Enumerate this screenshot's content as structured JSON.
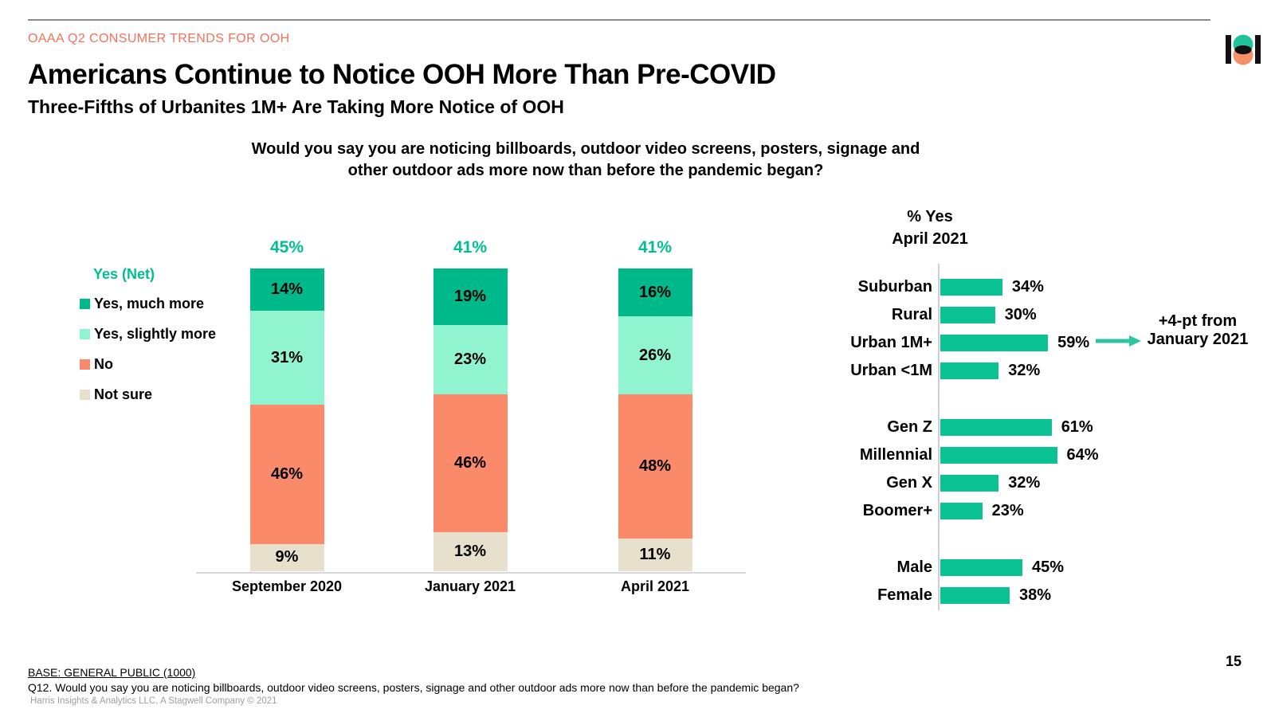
{
  "kicker": "OAAA Q2 CONSUMER TRENDS FOR OOH",
  "title": "Americans Continue to Notice OOH More Than Pre-COVID",
  "subtitle": "Three-Fifths of Urbanites 1M+ Are Taking More Notice of OOH",
  "question_line1": "Would you say you are noticing billboards, outdoor video screens, posters, signage and",
  "question_line2": "other outdoor ads more now than before the pandemic began?",
  "colors": {
    "accent_teal": "#00bd92",
    "kicker_salmon": "#f0725a",
    "logo_teal": "#1fc39a",
    "logo_orange": "#f59067",
    "rule_gray": "#8a8a8a"
  },
  "logo_icon": "harris-poll-logo",
  "chart_data": [
    {
      "type": "bar",
      "subtype": "stacked-vertical",
      "legend_title": "Yes (Net)",
      "value_suffix": "%",
      "categories": [
        "September 2020",
        "January 2021",
        "April 2021"
      ],
      "series": [
        {
          "name": "Yes, much more",
          "color": "#00b98b",
          "values": [
            14,
            19,
            16
          ]
        },
        {
          "name": "Yes, slightly more",
          "color": "#90f4d0",
          "values": [
            31,
            23,
            26
          ]
        },
        {
          "name": "No",
          "color": "#fa8a6a",
          "values": [
            46,
            46,
            48
          ]
        },
        {
          "name": "Not sure",
          "color": "#e6e0cd",
          "values": [
            9,
            13,
            11
          ]
        }
      ],
      "net_yes_labels": [
        "45%",
        "41%",
        "41%"
      ],
      "ylim": [
        0,
        100
      ],
      "grid": false
    },
    {
      "type": "bar",
      "subtype": "horizontal",
      "title_line1": "% Yes",
      "title_line2": "April 2021",
      "bar_color": "#0bc295",
      "value_suffix": "%",
      "xlim": [
        0,
        100
      ],
      "groups": [
        {
          "rows": [
            {
              "label": "Suburban",
              "value": 34
            },
            {
              "label": "Rural",
              "value": 30
            },
            {
              "label": "Urban 1M+",
              "value": 59
            },
            {
              "label": "Urban <1M",
              "value": 32
            }
          ]
        },
        {
          "rows": [
            {
              "label": "Gen Z",
              "value": 61
            },
            {
              "label": "Millennial",
              "value": 64
            },
            {
              "label": "Gen X",
              "value": 32
            },
            {
              "label": "Boomer+",
              "value": 23
            }
          ]
        },
        {
          "rows": [
            {
              "label": "Male",
              "value": 45
            },
            {
              "label": "Female",
              "value": 38
            }
          ]
        }
      ],
      "annotation": {
        "line1": "+4-pt from",
        "line2": "January 2021",
        "target": "Urban 1M+",
        "arrow_color": "#2cc5a1"
      }
    }
  ],
  "footer": {
    "base": "BASE: GENERAL PUBLIC (1000)",
    "q12": "Q12. Would you say you are noticing billboards, outdoor video screens, posters, signage and other outdoor ads more now than before the pandemic began?",
    "source": "Harris Insights & Analytics LLC, A Stagwell Company © 2021",
    "page_number": "15"
  }
}
